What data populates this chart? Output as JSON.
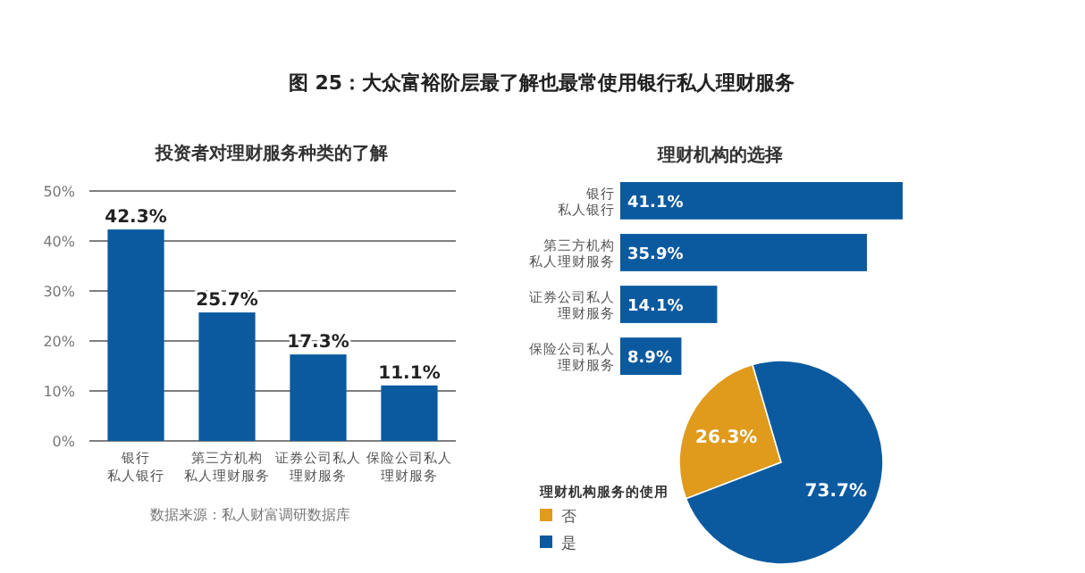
{
  "chart_data": [
    {
      "type": "bar",
      "title": "图 25：大众富裕阶层最了解也最常使用银行私人理财服务",
      "subtitle": "投资者对理财服务种类的了解",
      "categories": [
        "银行私人银行",
        "第三方机构私人理财服务",
        "证券公司私人理财服务",
        "保险公司私人理财服务"
      ],
      "values": [
        42.3,
        25.7,
        17.3,
        11.1
      ],
      "value_labels": [
        "42.3%",
        "25.7%",
        "17.3%",
        "11.1%"
      ],
      "color": "#0b5aa0",
      "ylim": [
        0,
        50
      ],
      "yticks": [
        {
          "value": 0,
          "label": "0%"
        },
        {
          "value": 10,
          "label": "10%"
        },
        {
          "value": 20,
          "label": "20%"
        },
        {
          "value": 30,
          "label": "30%"
        },
        {
          "value": 40,
          "label": "40%"
        },
        {
          "value": 50,
          "label": "50%"
        }
      ],
      "grid": "y",
      "annotations": [
        "数据来源：私人财富调研数据库"
      ]
    },
    {
      "type": "bar",
      "orientation": "horizontal",
      "title": "理财机构的选择",
      "categories": [
        "银行私人银行",
        "第三方机构私人理财服务",
        "证券公司私人理财服务",
        "保险公司私人理财服务"
      ],
      "values": [
        41.1,
        35.9,
        14.1,
        8.9
      ],
      "value_labels": [
        "41.1%",
        "35.9%",
        "14.1%",
        "8.9%"
      ],
      "color": "#0b5aa0"
    },
    {
      "type": "pie",
      "legend_title": "理财机构服务的使用",
      "categories": [
        "否",
        "是"
      ],
      "values": [
        26.3,
        73.7
      ],
      "value_labels": [
        "26.3%",
        "73.7%"
      ],
      "colors": [
        "#e09a1c",
        "#0b5aa0"
      ],
      "legend": "left"
    }
  ]
}
